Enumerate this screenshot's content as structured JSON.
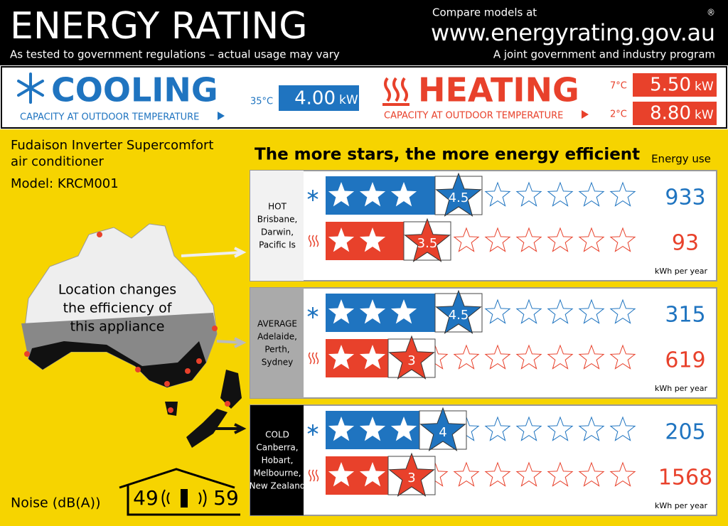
{
  "header": {
    "title": "ENERGY RATING",
    "subtitle": "As tested to government regulations – actual usage may vary",
    "compare": "Compare models at",
    "url": "www.energyrating.gov.au",
    "program": "A joint government and industry program",
    "registered": "®"
  },
  "cooling": {
    "title": "COOLING",
    "caption": "CAPACITY AT OUTDOOR TEMPERATURE",
    "temperature": "35°C",
    "capacity": "4.00",
    "unit": "kW"
  },
  "heating": {
    "title": "HEATING",
    "caption": "CAPACITY AT OUTDOOR TEMPERATURE",
    "rows": [
      {
        "temperature": "7°C",
        "capacity": "5.50",
        "unit": "kW"
      },
      {
        "temperature": "2°C",
        "capacity": "8.80",
        "unit": "kW"
      }
    ]
  },
  "product": {
    "name_lines": [
      "Fudaison Inverter Supercomfort",
      "air conditioner"
    ],
    "model": "Model: KRCM001"
  },
  "map_caption": [
    "Location changes",
    "the efficiency of",
    "this appliance"
  ],
  "noise": {
    "label": "Noise (dB(A))",
    "indoor": "49",
    "outdoor": "59"
  },
  "efficiency_title": "The more stars, the more energy efficient",
  "energy_use_header": "Energy use",
  "zones": [
    {
      "name": "HOT",
      "places": [
        "Brisbane,",
        "Darwin,",
        "Pacific Is"
      ],
      "cooling": {
        "stars": 4.5,
        "energy": 933
      },
      "heating": {
        "stars": 3.5,
        "energy": 93
      },
      "unit": "kWh per year"
    },
    {
      "name": "AVERAGE",
      "places": [
        "Adelaide,",
        "Perth,",
        "Sydney"
      ],
      "cooling": {
        "stars": 4.5,
        "energy": 315
      },
      "heating": {
        "stars": 3,
        "energy": 619
      },
      "unit": "kWh per year"
    },
    {
      "name": "COLD",
      "places": [
        "Canberra,",
        "Hobart,",
        "Melbourne,",
        "New Zealand"
      ],
      "cooling": {
        "stars": 4,
        "energy": 205
      },
      "heating": {
        "stars": 3,
        "energy": 1568
      },
      "unit": "kWh per year"
    }
  ]
}
